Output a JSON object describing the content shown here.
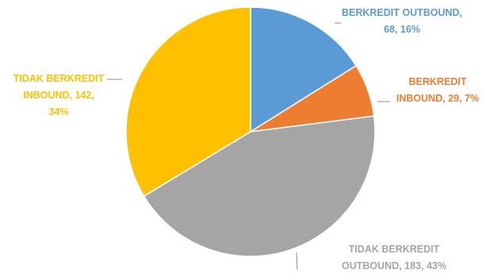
{
  "chart_data": {
    "type": "pie",
    "title": "",
    "series": [
      {
        "name": "BERKREDIT OUTBOUND",
        "value": 68,
        "percent": "16%",
        "color": "#5b9bd5",
        "label_lines": [
          "BERKREDIT OUTBOUND,",
          "68, 16%"
        ]
      },
      {
        "name": "BERKREDIT INBOUND",
        "value": 29,
        "percent": "7%",
        "color": "#ed7d31",
        "label_lines": [
          "BERKREDIT",
          "INBOUND, 29, 7%"
        ]
      },
      {
        "name": "TIDAK BERKREDIT OUTBOUND",
        "value": 183,
        "percent": "43%",
        "color": "#a5a5a5",
        "label_lines": [
          "TIDAK BERKREDIT",
          "OUTBOUND, 183, 43%"
        ]
      },
      {
        "name": "TIDAK BERKREDIT INBOUND",
        "value": 142,
        "percent": "34%",
        "color": "#ffc000",
        "label_lines": [
          "TIDAK BERKREDIT",
          "INBOUND, 142,",
          "34%"
        ]
      }
    ],
    "start_angle": "12 o'clock",
    "direction": "clockwise",
    "legend": "none",
    "label_colors": [
      "#5b9bd5",
      "#ed7d31",
      "#a5a5a5",
      "#ffc000"
    ]
  }
}
